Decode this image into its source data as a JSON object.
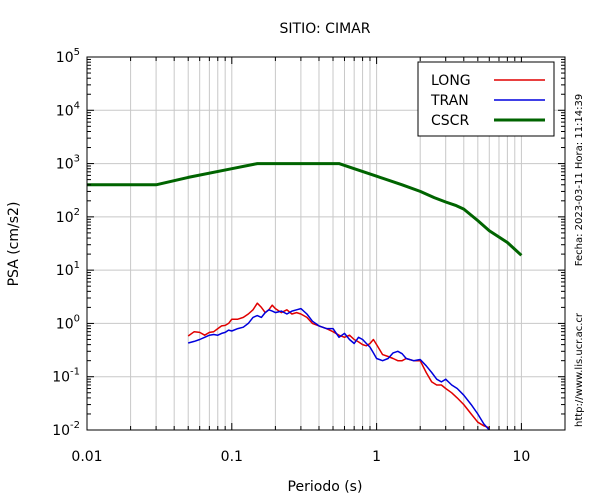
{
  "chart_data": {
    "type": "line",
    "title": "SITIO: CIMAR",
    "xlabel": "Periodo (s)",
    "ylabel": "PSA (cm/s2)",
    "xscale": "log",
    "yscale": "log",
    "xlim": [
      0.01,
      20
    ],
    "ylim": [
      0.01,
      100000
    ],
    "grid": true,
    "legend_position": "top-right",
    "x_ticks": [
      {
        "value": 0.01,
        "label": "0.01"
      },
      {
        "value": 0.1,
        "label": "0.1"
      },
      {
        "value": 1,
        "label": "1"
      },
      {
        "value": 10,
        "label": "10"
      }
    ],
    "y_ticks": [
      {
        "value": 0.01,
        "base": "10",
        "exp": "-2"
      },
      {
        "value": 0.1,
        "base": "10",
        "exp": "-1"
      },
      {
        "value": 1,
        "base": "10",
        "exp": "0"
      },
      {
        "value": 10,
        "base": "10",
        "exp": "1"
      },
      {
        "value": 100,
        "base": "10",
        "exp": "2"
      },
      {
        "value": 1000,
        "base": "10",
        "exp": "3"
      },
      {
        "value": 10000,
        "base": "10",
        "exp": "4"
      },
      {
        "value": 100000,
        "base": "10",
        "exp": "5"
      }
    ],
    "side_notes": {
      "fecha": "Fecha: 2023-03-11  Hora: 11:14:39",
      "url": "http://www.lis.ucr.ac.cr"
    },
    "series": [
      {
        "name": "LONG",
        "color": "#e00000",
        "width": 1.5,
        "x": [
          0.05,
          0.055,
          0.06,
          0.065,
          0.07,
          0.075,
          0.08,
          0.085,
          0.09,
          0.095,
          0.1,
          0.11,
          0.12,
          0.13,
          0.14,
          0.15,
          0.16,
          0.17,
          0.18,
          0.19,
          0.2,
          0.22,
          0.24,
          0.26,
          0.28,
          0.3,
          0.33,
          0.36,
          0.4,
          0.45,
          0.5,
          0.55,
          0.6,
          0.65,
          0.7,
          0.75,
          0.8,
          0.85,
          0.9,
          0.95,
          1.0,
          1.1,
          1.2,
          1.3,
          1.4,
          1.5,
          1.6,
          1.8,
          2.0,
          2.2,
          2.4,
          2.6,
          2.8,
          3.0,
          3.3,
          3.6,
          4.0,
          4.5,
          5.0,
          5.5,
          6.0
        ],
        "y": [
          0.58,
          0.7,
          0.68,
          0.6,
          0.68,
          0.7,
          0.8,
          0.9,
          0.92,
          1.0,
          1.2,
          1.2,
          1.3,
          1.5,
          1.8,
          2.4,
          2.0,
          1.6,
          1.8,
          2.2,
          1.9,
          1.6,
          1.8,
          1.5,
          1.6,
          1.5,
          1.3,
          1.0,
          0.9,
          0.8,
          0.7,
          0.6,
          0.55,
          0.6,
          0.5,
          0.45,
          0.4,
          0.38,
          0.42,
          0.5,
          0.4,
          0.26,
          0.24,
          0.22,
          0.2,
          0.2,
          0.22,
          0.2,
          0.2,
          0.12,
          0.08,
          0.07,
          0.07,
          0.06,
          0.05,
          0.04,
          0.03,
          0.02,
          0.014,
          0.012,
          0.011
        ]
      },
      {
        "name": "TRAN",
        "color": "#0000dd",
        "width": 1.5,
        "x": [
          0.05,
          0.055,
          0.06,
          0.065,
          0.07,
          0.075,
          0.08,
          0.085,
          0.09,
          0.095,
          0.1,
          0.11,
          0.12,
          0.13,
          0.14,
          0.15,
          0.16,
          0.17,
          0.18,
          0.19,
          0.2,
          0.22,
          0.24,
          0.26,
          0.28,
          0.3,
          0.33,
          0.36,
          0.4,
          0.45,
          0.5,
          0.55,
          0.6,
          0.65,
          0.7,
          0.75,
          0.8,
          0.85,
          0.9,
          0.95,
          1.0,
          1.1,
          1.2,
          1.3,
          1.4,
          1.5,
          1.6,
          1.8,
          2.0,
          2.2,
          2.4,
          2.6,
          2.8,
          3.0,
          3.3,
          3.6,
          4.0,
          4.5,
          5.0,
          5.5,
          6.0
        ],
        "y": [
          0.43,
          0.46,
          0.5,
          0.55,
          0.6,
          0.62,
          0.6,
          0.65,
          0.68,
          0.75,
          0.72,
          0.8,
          0.85,
          1.0,
          1.3,
          1.4,
          1.3,
          1.6,
          1.8,
          1.7,
          1.6,
          1.7,
          1.5,
          1.7,
          1.8,
          1.9,
          1.5,
          1.1,
          0.9,
          0.8,
          0.8,
          0.55,
          0.65,
          0.5,
          0.42,
          0.55,
          0.5,
          0.42,
          0.36,
          0.28,
          0.22,
          0.2,
          0.22,
          0.28,
          0.3,
          0.27,
          0.22,
          0.2,
          0.21,
          0.16,
          0.12,
          0.09,
          0.08,
          0.09,
          0.07,
          0.06,
          0.045,
          0.03,
          0.02,
          0.013,
          0.01
        ]
      },
      {
        "name": "CSCR",
        "color": "#006400",
        "width": 3,
        "x": [
          0.01,
          0.03,
          0.05,
          0.1,
          0.15,
          0.2,
          0.3,
          0.4,
          0.55,
          0.7,
          1.0,
          1.5,
          2.0,
          2.5,
          3.0,
          3.5,
          4.0,
          5.0,
          6.0,
          8.0,
          10.0
        ],
        "y": [
          400,
          400,
          550,
          800,
          1000,
          1000,
          1000,
          1000,
          1000,
          800,
          580,
          400,
          300,
          230,
          190,
          165,
          140,
          85,
          55,
          33,
          19
        ]
      }
    ]
  }
}
